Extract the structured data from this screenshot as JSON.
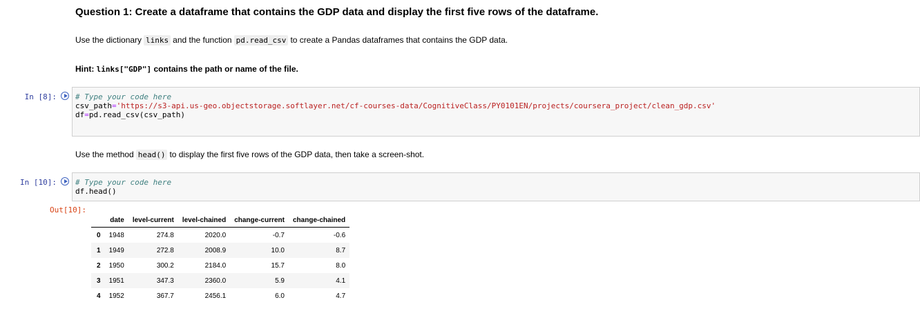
{
  "question": {
    "title": "Question 1: Create a dataframe that contains the GDP data and display the first five rows of the dataframe.",
    "instr_prefix": "Use the dictionary",
    "instr_code1": "links",
    "instr_mid": "and the function",
    "instr_code2": "pd.read_csv",
    "instr_suffix": "to create a Pandas dataframes that contains the GDP data.",
    "hint_prefix": "Hint:",
    "hint_code": "links[\"GDP\"]",
    "hint_suffix": "contains the path or name of the file."
  },
  "cell1": {
    "prompt": "In [8]:",
    "comment": "# Type your code here",
    "line2_var": "csv_path",
    "line2_op": "=",
    "line2_str": "'https://s3-api.us-geo.objectstorage.softlayer.net/cf-courses-data/CognitiveClass/PY0101EN/projects/coursera_project/clean_gdp.csv'",
    "line3_var": "df",
    "line3_op": "=",
    "line3_rest": "pd.read_csv(csv_path)"
  },
  "md2": {
    "prefix": "Use the method",
    "code": "head()",
    "suffix": "to display the first five rows of the GDP data, then take a screen-shot."
  },
  "cell2": {
    "prompt": "In [10]:",
    "comment": "# Type your code here",
    "line2": "df.head()",
    "out_prompt": "Out[10]:"
  },
  "dataframe": {
    "columns": [
      "",
      "date",
      "level-current",
      "level-chained",
      "change-current",
      "change-chained"
    ],
    "rows": [
      [
        "0",
        "1948",
        "274.8",
        "2020.0",
        "-0.7",
        "-0.6"
      ],
      [
        "1",
        "1949",
        "272.8",
        "2008.9",
        "10.0",
        "8.7"
      ],
      [
        "2",
        "1950",
        "300.2",
        "2184.0",
        "15.7",
        "8.0"
      ],
      [
        "3",
        "1951",
        "347.3",
        "2360.0",
        "5.9",
        "4.1"
      ],
      [
        "4",
        "1952",
        "367.7",
        "2456.1",
        "6.0",
        "4.7"
      ]
    ]
  },
  "colors": {
    "in_prompt": "#303f9f",
    "out_prompt": "#d84315",
    "comment": "#408080",
    "string": "#ba2121"
  }
}
